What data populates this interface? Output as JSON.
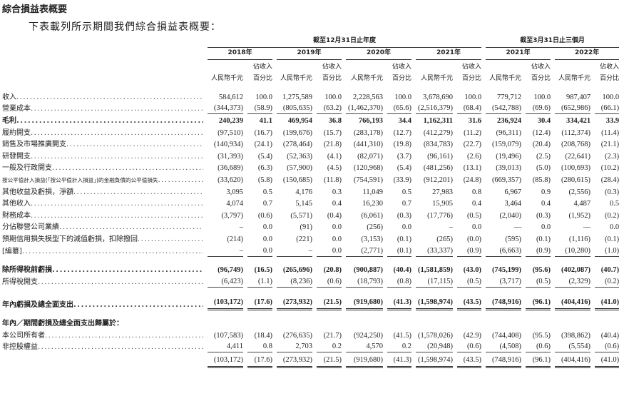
{
  "title": "綜合損益表概要",
  "subtitle": "下表載列所示期間我們綜合損益表概要：",
  "header": {
    "period_annual": "截至12月31日止年度",
    "period_quarter": "截至3月31日止三個月",
    "years": [
      "2018年",
      "2019年",
      "2020年",
      "2021年",
      "2021年",
      "2022年"
    ],
    "col_rmb": "人民幣千元",
    "col_pct_line1": "佔收入",
    "col_pct_line2": "百分比"
  },
  "rows": [
    {
      "label": "收入",
      "style": "",
      "values": [
        "584,612",
        "100.0",
        "1,275,589",
        "100.0",
        "2,228,563",
        "100.0",
        "3,678,690",
        "100.0",
        "779,712",
        "100.0",
        "987,407",
        "100.0"
      ]
    },
    {
      "label": "營業成本",
      "style": "single",
      "values": [
        "(344,373)",
        "(58.9)",
        "(805,635)",
        "(63.2)",
        "(1,462,370)",
        "(65.6)",
        "(2,516,379)",
        "(68.4)",
        "(542,788)",
        "(69.6)",
        "(652,986)",
        "(66.1)"
      ]
    },
    {
      "label": "毛利",
      "style": "bold",
      "values": [
        "240,239",
        "41.1",
        "469,954",
        "36.8",
        "766,193",
        "34.4",
        "1,162,311",
        "31.6",
        "236,924",
        "30.4",
        "334,421",
        "33.9"
      ]
    },
    {
      "label": "履約開支",
      "style": "",
      "values": [
        "(97,510)",
        "(16.7)",
        "(199,676)",
        "(15.7)",
        "(283,178)",
        "(12.7)",
        "(412,279)",
        "(11.2)",
        "(96,311)",
        "(12.4)",
        "(112,374)",
        "(11.4)"
      ]
    },
    {
      "label": "銷售及市場推廣開支",
      "style": "",
      "values": [
        "(140,934)",
        "(24.1)",
        "(278,464)",
        "(21.8)",
        "(441,310)",
        "(19.8)",
        "(834,783)",
        "(22.7)",
        "(159,079)",
        "(20.4)",
        "(208,768)",
        "(21.1)"
      ]
    },
    {
      "label": "研發開支",
      "style": "",
      "values": [
        "(31,393)",
        "(5.4)",
        "(52,363)",
        "(4.1)",
        "(82,071)",
        "(3.7)",
        "(96,161)",
        "(2.6)",
        "(19,496)",
        "(2.5)",
        "(22,641)",
        "(2.3)"
      ]
    },
    {
      "label": "一般及行政開支",
      "style": "",
      "values": [
        "(36,689)",
        "(6.3)",
        "(57,900)",
        "(4.5)",
        "(120,968)",
        "(5.4)",
        "(481,256)",
        "(13.1)",
        "(39,013)",
        "(5.0)",
        "(100,693)",
        "(10.2)"
      ]
    },
    {
      "label": "按公平值計入損益(「按公平值計入損益」)的金融負債的公平值損失",
      "style": "",
      "values": [
        "(33,620)",
        "(5.8)",
        "(150,685)",
        "(11.8)",
        "(754,591)",
        "(33.9)",
        "(912,201)",
        "(24.8)",
        "(669,357)",
        "(85.8)",
        "(280,615)",
        "(28.4)"
      ]
    },
    {
      "label": "其他收益及虧損，淨額",
      "style": "",
      "values": [
        "3,095",
        "0.5",
        "4,176",
        "0.3",
        "11,049",
        "0.5",
        "27,983",
        "0.8",
        "6,967",
        "0.9",
        "(2,556)",
        "(0.3)"
      ]
    },
    {
      "label": "其他收入",
      "style": "",
      "values": [
        "4,074",
        "0.7",
        "5,145",
        "0.4",
        "16,230",
        "0.7",
        "15,905",
        "0.4",
        "3,464",
        "0.4",
        "4,487",
        "0.5"
      ]
    },
    {
      "label": "財務成本",
      "style": "",
      "values": [
        "(3,797)",
        "(0.6)",
        "(5,571)",
        "(0.4)",
        "(6,061)",
        "(0.3)",
        "(17,776)",
        "(0.5)",
        "(2,040)",
        "(0.3)",
        "(1,952)",
        "(0.2)"
      ]
    },
    {
      "label": "分佔聯營公司業績",
      "style": "",
      "values": [
        "–",
        "0.0",
        "(91)",
        "0.0",
        "(256)",
        "0.0",
        "–",
        "0.0",
        "—",
        "0.0",
        "—",
        "0.0"
      ]
    },
    {
      "label": "預期信用損失模型下的減值虧損，扣除撥回",
      "style": "",
      "values": [
        "(214)",
        "0.0",
        "(221)",
        "0.0",
        "(3,153)",
        "(0.1)",
        "(265)",
        "(0.0)",
        "(595)",
        "(0.1)",
        "(1,116)",
        "(0.1)"
      ]
    },
    {
      "label": "[編纂]",
      "style": "single",
      "values": [
        "–",
        "0.0",
        "–",
        "0.0",
        "(2,771)",
        "(0.1)",
        "(33,337)",
        "(0.9)",
        "(6,663)",
        "(0.9)",
        "(10,280)",
        "(1.0)"
      ]
    },
    {
      "label": "除所得稅前虧損",
      "style": "bold gapbefore",
      "values": [
        "(96,749)",
        "(16.5)",
        "(265,696)",
        "(20.8)",
        "(900,887)",
        "(40.4)",
        "(1,581,859)",
        "(43.0)",
        "(745,199)",
        "(95.6)",
        "(402,087)",
        "(40.7)"
      ]
    },
    {
      "label": "所得稅開支",
      "style": "single",
      "values": [
        "(6,423)",
        "(1.1)",
        "(8,236)",
        "(0.6)",
        "(18,793)",
        "(0.8)",
        "(17,115)",
        "(0.5)",
        "(3,717)",
        "(0.5)",
        "(2,329)",
        "(0.2)"
      ]
    },
    {
      "label": "年內虧損及總全面支出",
      "style": "bold double gapbefore",
      "values": [
        "(103,172)",
        "(17.6)",
        "(273,932)",
        "(21.5)",
        "(919,680)",
        "(41.3)",
        "(1,598,974)",
        "(43.5)",
        "(748,916)",
        "(96.1)",
        "(404,416)",
        "(41.0)"
      ]
    },
    {
      "label": "年內／期間虧損及總全面支出歸屬於：",
      "style": "section gapbefore",
      "values": []
    },
    {
      "label": "本公司所有者",
      "style": "",
      "values": [
        "(107,583)",
        "(18.4)",
        "(276,635)",
        "(21.7)",
        "(924,250)",
        "(41.5)",
        "(1,578,026)",
        "(42.9)",
        "(744,408)",
        "(95.5)",
        "(398,862)",
        "(40.4)"
      ]
    },
    {
      "label": "非控股權益",
      "style": "single",
      "values": [
        "4,411",
        "0.8",
        "2,703",
        "0.2",
        "4,570",
        "0.2",
        "(20,948)",
        "(0.6)",
        "(4,508)",
        "(0.6)",
        "(5,554)",
        "(0.6)"
      ]
    },
    {
      "label": "",
      "style": "double",
      "values": [
        "(103,172)",
        "(17.6)",
        "(273,932)",
        "(21.5)",
        "(919,680)",
        "(41.3)",
        "(1,598,974)",
        "(43.5)",
        "(748,916)",
        "(96.1)",
        "(404,416)",
        "(41.0)"
      ]
    }
  ]
}
